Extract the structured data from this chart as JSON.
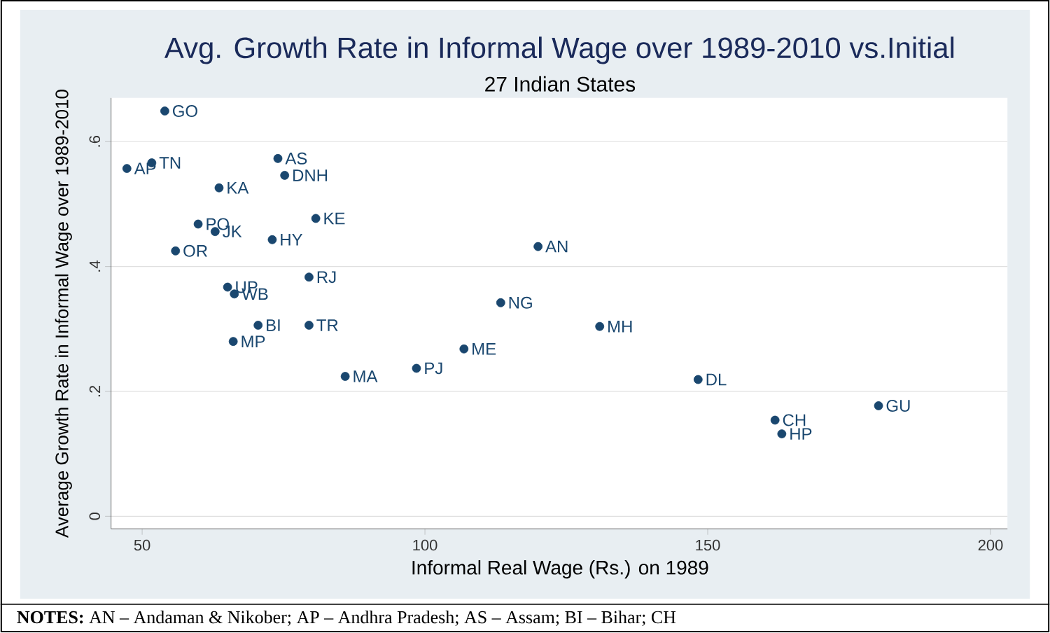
{
  "chart_data": {
    "type": "scatter",
    "title": "Avg. Growth Rate in Informal Wage over 1989-2010 vs.Initial",
    "subtitle": "27 Indian States",
    "xlabel": "Informal Real Wage (Rs.) on 1989",
    "ylabel": "Average Growth Rate in Informal Wage over 1989-2010",
    "x": [
      54.0,
      51.7,
      47.3,
      74.0,
      75.2,
      63.6,
      80.7,
      59.9,
      62.9,
      73.0,
      55.9,
      120.0,
      79.5,
      65.1,
      66.3,
      113.4,
      70.5,
      79.5,
      130.9,
      66.1,
      106.9,
      98.5,
      85.9,
      148.3,
      180.2,
      161.9,
      163.1
    ],
    "values": [
      0.649,
      0.566,
      0.557,
      0.573,
      0.546,
      0.526,
      0.477,
      0.468,
      0.456,
      0.443,
      0.425,
      0.432,
      0.383,
      0.367,
      0.356,
      0.342,
      0.306,
      0.306,
      0.304,
      0.28,
      0.268,
      0.237,
      0.224,
      0.219,
      0.177,
      0.154,
      0.132
    ],
    "value_labels": [
      "GO",
      "TN",
      "AP",
      "AS",
      "DNH",
      "KA",
      "KE",
      "PO",
      "JK",
      "HY",
      "OR",
      "AN",
      "RJ",
      "UP",
      "WB",
      "NG",
      "BI",
      "TR",
      "MH",
      "MP",
      "ME",
      "PJ",
      "MA",
      "DL",
      "GU",
      "CH",
      "HP"
    ],
    "color": "#1a476f",
    "marker": "circle",
    "xlim": [
      44.5,
      203
    ],
    "ylim": [
      -0.02,
      0.67
    ],
    "xticks": [
      50,
      100,
      150,
      200
    ],
    "yticks": [
      0,
      {
        "value": 0.2,
        "label": ".2"
      },
      {
        "value": 0.4,
        "label": ".4"
      },
      {
        "value": 0.6,
        "label": ".6"
      }
    ],
    "grid": "y",
    "annotations": [
      "**NOTES:** AN – Andaman & Nikober; AP – Andhra Pradesh; AS – Assam; BI – Bihar; CH"
    ]
  }
}
